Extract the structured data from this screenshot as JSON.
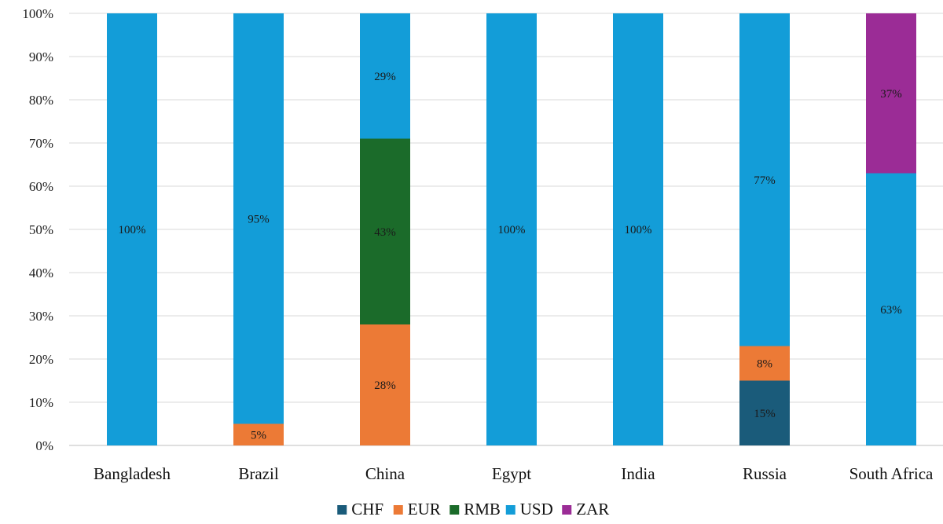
{
  "chart_data": {
    "type": "bar",
    "stacked": true,
    "percent_stacked": true,
    "categories": [
      "Bangladesh",
      "Brazil",
      "China",
      "Egypt",
      "India",
      "Russia",
      "South Africa"
    ],
    "series": [
      {
        "name": "CHF",
        "color": "#1a5b7a",
        "values": [
          0,
          0,
          0,
          0,
          0,
          15,
          0
        ]
      },
      {
        "name": "EUR",
        "color": "#ec7a36",
        "values": [
          0,
          5,
          28,
          0,
          0,
          8,
          0
        ]
      },
      {
        "name": "RMB",
        "color": "#1b6b2a",
        "values": [
          0,
          0,
          43,
          0,
          0,
          0,
          0
        ]
      },
      {
        "name": "USD",
        "color": "#139dd8",
        "values": [
          100,
          95,
          29,
          100,
          100,
          77,
          63
        ]
      },
      {
        "name": "ZAR",
        "color": "#9b2c96",
        "values": [
          0,
          0,
          0,
          0,
          0,
          0,
          37
        ]
      }
    ],
    "data_labels": [
      {
        "category": "Bangladesh",
        "series": "USD",
        "text": "100%"
      },
      {
        "category": "Brazil",
        "series": "EUR",
        "text": "5%"
      },
      {
        "category": "Brazil",
        "series": "USD",
        "text": "95%"
      },
      {
        "category": "China",
        "series": "EUR",
        "text": "28%"
      },
      {
        "category": "China",
        "series": "RMB",
        "text": "43%"
      },
      {
        "category": "China",
        "series": "USD",
        "text": "29%"
      },
      {
        "category": "Egypt",
        "series": "USD",
        "text": "100%"
      },
      {
        "category": "India",
        "series": "USD",
        "text": "100%"
      },
      {
        "category": "Russia",
        "series": "CHF",
        "text": "15%"
      },
      {
        "category": "Russia",
        "series": "EUR",
        "text": "8%"
      },
      {
        "category": "Russia",
        "series": "USD",
        "text": "77%"
      },
      {
        "category": "South Africa",
        "series": "USD",
        "text": "63%"
      },
      {
        "category": "South Africa",
        "series": "ZAR",
        "text": "37%"
      }
    ],
    "y_ticks": [
      "0%",
      "10%",
      "20%",
      "30%",
      "40%",
      "50%",
      "60%",
      "70%",
      "80%",
      "90%",
      "100%"
    ],
    "ylim": [
      0,
      100
    ],
    "grid": true,
    "legend_position": "bottom",
    "title": "",
    "xlabel": "",
    "ylabel": ""
  }
}
